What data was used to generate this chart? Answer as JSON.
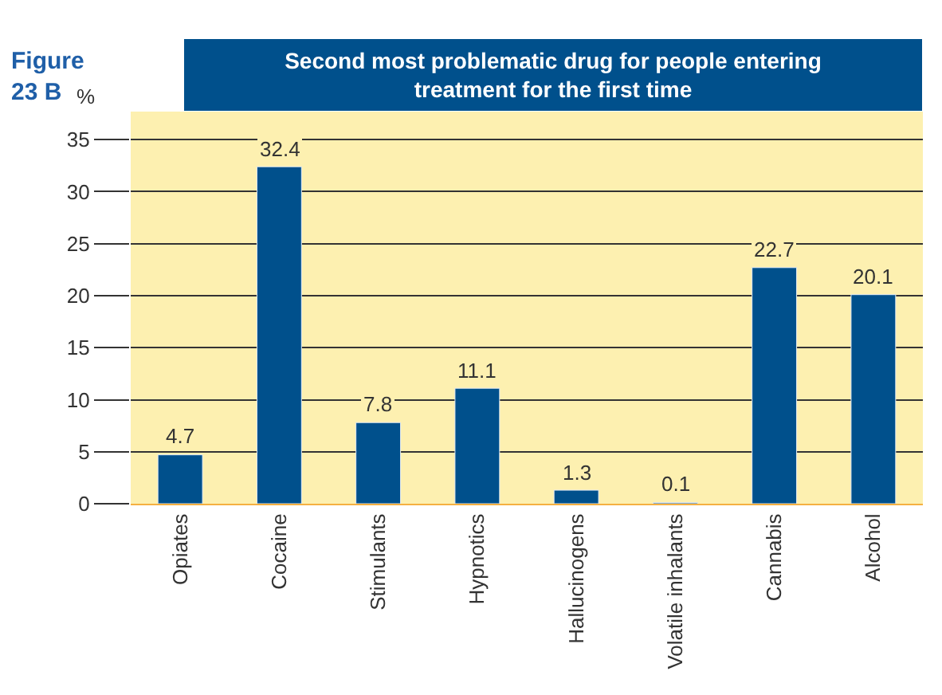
{
  "chart_data": {
    "type": "bar",
    "title": "Second most problematic drug for people entering treatment for the first time",
    "ylabel": "%",
    "annotations": [
      "Figure 23 B"
    ],
    "categories": [
      "Opiates",
      "Cocaine",
      "Stimulants",
      "Hypnotics",
      "Hallucinogens",
      "Volatile inhalants",
      "Cannabis",
      "Alcohol"
    ],
    "values": [
      4.7,
      32.4,
      7.8,
      11.1,
      1.3,
      0.1,
      22.7,
      20.1
    ],
    "color": "#00508c",
    "ylim": [
      0,
      37.7
    ],
    "yticks": [
      0,
      5,
      10,
      15,
      20,
      25,
      30,
      35
    ],
    "grid": "y",
    "data_labels": true
  }
}
